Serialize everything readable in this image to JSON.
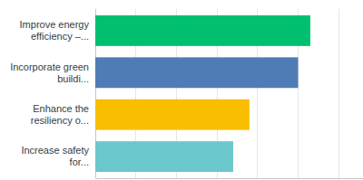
{
  "chart_data": {
    "type": "bar",
    "orientation": "horizontal",
    "categories": [
      "Improve energy efficiency –...",
      "Incorporate green buildi...",
      "Enhance the resiliency o...",
      "Increase safety for..."
    ],
    "values": [
      53,
      50,
      38,
      34
    ],
    "colors": [
      "#00bf6f",
      "#507cb6",
      "#f9be00",
      "#6bc8cd"
    ],
    "xlim": [
      0,
      66
    ],
    "xticks": [
      0,
      10,
      20,
      30,
      40,
      50,
      60
    ],
    "grid": true,
    "tick_labels": false
  }
}
